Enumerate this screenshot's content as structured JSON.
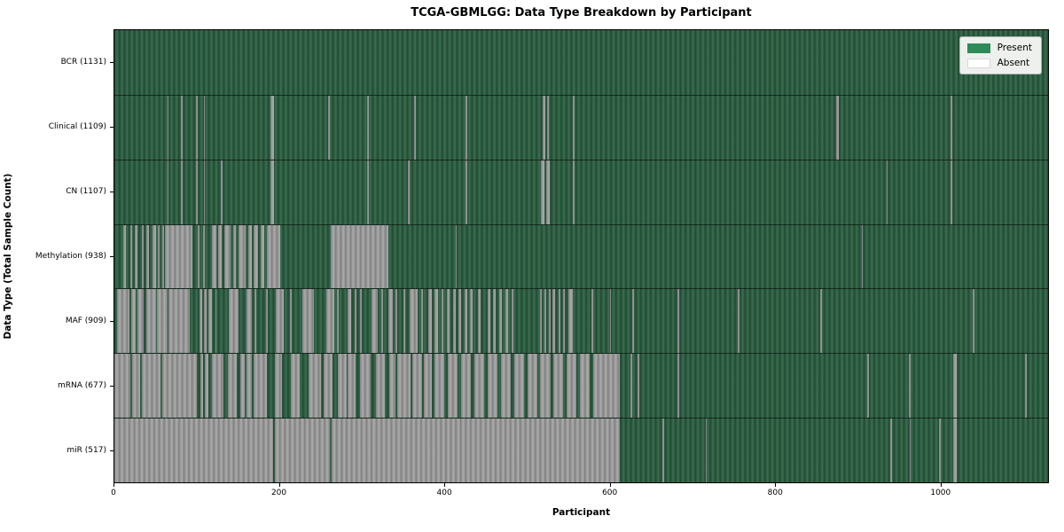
{
  "title": "TCGA-GBMLGG: Data Type Breakdown by Participant",
  "chart_data": {
    "type": "heatmap",
    "title": "TCGA-GBMLGG: Data Type Breakdown by Participant",
    "xlabel": "Participant",
    "ylabel": "Data Type (Total Sample Count)",
    "x_max": 1131,
    "x_ticks": [
      0,
      200,
      400,
      600,
      800,
      1000
    ],
    "grid": false,
    "legend_position": "upper right",
    "legend": [
      {
        "label": "Present",
        "color": "#2e8b57"
      },
      {
        "label": "Absent",
        "color": "#ffffff"
      }
    ],
    "colors": {
      "present_base": "#2d5d42",
      "present_dark": "#224a33",
      "present_light": "#3c6e52",
      "absent_base": "#999999",
      "absent_dark": "#7f7f7f",
      "absent_light": "#ababab",
      "frame": "#000000",
      "legend_bg": "#eef0ee"
    },
    "rows": [
      {
        "name": "BCR",
        "label": "BCR (1131)",
        "present_count": 1131,
        "absent_segments": []
      },
      {
        "name": "Clinical",
        "label": "Clinical (1109)",
        "present_count": 1109,
        "absent_segments": [
          [
            64,
            66
          ],
          [
            81,
            83
          ],
          [
            99,
            101
          ],
          [
            108,
            110
          ],
          [
            189,
            193
          ],
          [
            259,
            261
          ],
          [
            306,
            308
          ],
          [
            363,
            365
          ],
          [
            425,
            427
          ],
          [
            519,
            522
          ],
          [
            524,
            526
          ],
          [
            555,
            557
          ],
          [
            874,
            877
          ],
          [
            1013,
            1015
          ]
        ]
      },
      {
        "name": "CN",
        "label": "CN (1107)",
        "present_count": 1107,
        "absent_segments": [
          [
            64,
            66
          ],
          [
            81,
            83
          ],
          [
            99,
            101
          ],
          [
            108,
            110
          ],
          [
            129,
            131
          ],
          [
            189,
            193
          ],
          [
            306,
            308
          ],
          [
            356,
            358
          ],
          [
            425,
            427
          ],
          [
            517,
            521
          ],
          [
            523,
            527
          ],
          [
            555,
            557
          ],
          [
            935,
            937
          ],
          [
            1013,
            1015
          ]
        ]
      },
      {
        "name": "Methylation",
        "label": "Methylation (938)",
        "present_count": 938,
        "absent_segments": [
          [
            11,
            14
          ],
          [
            19,
            21
          ],
          [
            25,
            28
          ],
          [
            33,
            35
          ],
          [
            39,
            42
          ],
          [
            46,
            50
          ],
          [
            53,
            55
          ],
          [
            58,
            60
          ],
          [
            61,
            94
          ],
          [
            101,
            103
          ],
          [
            107,
            110
          ],
          [
            118,
            123
          ],
          [
            126,
            130
          ],
          [
            133,
            141
          ],
          [
            144,
            147
          ],
          [
            150,
            159
          ],
          [
            162,
            166
          ],
          [
            169,
            174
          ],
          [
            177,
            182
          ],
          [
            185,
            201
          ],
          [
            262,
            332
          ],
          [
            413,
            415
          ],
          [
            905,
            907
          ]
        ]
      },
      {
        "name": "MAF",
        "label": "MAF (909)",
        "present_count": 909,
        "absent_segments": [
          [
            3,
            18
          ],
          [
            20,
            26
          ],
          [
            28,
            35
          ],
          [
            39,
            50
          ],
          [
            52,
            64
          ],
          [
            66,
            91
          ],
          [
            103,
            106
          ],
          [
            108,
            112
          ],
          [
            114,
            118
          ],
          [
            122,
            124
          ],
          [
            139,
            150
          ],
          [
            160,
            166
          ],
          [
            170,
            172
          ],
          [
            184,
            186
          ],
          [
            196,
            205
          ],
          [
            213,
            215
          ],
          [
            228,
            242
          ],
          [
            257,
            266
          ],
          [
            270,
            272
          ],
          [
            282,
            287
          ],
          [
            291,
            293
          ],
          [
            298,
            300
          ],
          [
            312,
            319
          ],
          [
            323,
            325
          ],
          [
            332,
            337
          ],
          [
            341,
            343
          ],
          [
            350,
            352
          ],
          [
            358,
            367
          ],
          [
            372,
            374
          ],
          [
            380,
            385
          ],
          [
            388,
            392
          ],
          [
            396,
            399
          ],
          [
            403,
            406
          ],
          [
            410,
            413
          ],
          [
            417,
            420
          ],
          [
            424,
            427
          ],
          [
            431,
            434
          ],
          [
            440,
            444
          ],
          [
            452,
            455
          ],
          [
            459,
            462
          ],
          [
            466,
            469
          ],
          [
            474,
            477
          ],
          [
            481,
            483
          ],
          [
            516,
            518
          ],
          [
            521,
            523
          ],
          [
            526,
            528
          ],
          [
            531,
            534
          ],
          [
            538,
            540
          ],
          [
            544,
            546
          ],
          [
            550,
            555
          ],
          [
            578,
            580
          ],
          [
            600,
            602
          ],
          [
            627,
            629
          ],
          [
            682,
            684
          ],
          [
            755,
            757
          ],
          [
            855,
            857
          ],
          [
            1040,
            1042
          ]
        ]
      },
      {
        "name": "mRNA",
        "label": "mRNA (677)",
        "present_count": 677,
        "absent_segments": [
          [
            0,
            19
          ],
          [
            21,
            31
          ],
          [
            33,
            56
          ],
          [
            58,
            100
          ],
          [
            104,
            107
          ],
          [
            110,
            114
          ],
          [
            118,
            132
          ],
          [
            137,
            148
          ],
          [
            152,
            158
          ],
          [
            160,
            167
          ],
          [
            169,
            185
          ],
          [
            194,
            203
          ],
          [
            214,
            225
          ],
          [
            235,
            250
          ],
          [
            253,
            264
          ],
          [
            271,
            281
          ],
          [
            283,
            292
          ],
          [
            298,
            310
          ],
          [
            317,
            328
          ],
          [
            333,
            341
          ],
          [
            343,
            359
          ],
          [
            361,
            373
          ],
          [
            375,
            385
          ],
          [
            388,
            400
          ],
          [
            404,
            416
          ],
          [
            420,
            432
          ],
          [
            436,
            448
          ],
          [
            452,
            464
          ],
          [
            468,
            480
          ],
          [
            484,
            496
          ],
          [
            500,
            512
          ],
          [
            516,
            528
          ],
          [
            532,
            544
          ],
          [
            548,
            560
          ],
          [
            564,
            576
          ],
          [
            580,
            612
          ],
          [
            625,
            627
          ],
          [
            634,
            636
          ],
          [
            682,
            684
          ],
          [
            912,
            914
          ],
          [
            962,
            964
          ],
          [
            1016,
            1020
          ],
          [
            1103,
            1105
          ]
        ]
      },
      {
        "name": "miR",
        "label": "miR (517)",
        "present_count": 517,
        "absent_segments": [
          [
            0,
            192
          ],
          [
            194,
            261
          ],
          [
            263,
            612
          ],
          [
            664,
            666
          ],
          [
            716,
            718
          ],
          [
            940,
            942
          ],
          [
            963,
            965
          ],
          [
            999,
            1001
          ],
          [
            1016,
            1020
          ]
        ]
      }
    ]
  }
}
